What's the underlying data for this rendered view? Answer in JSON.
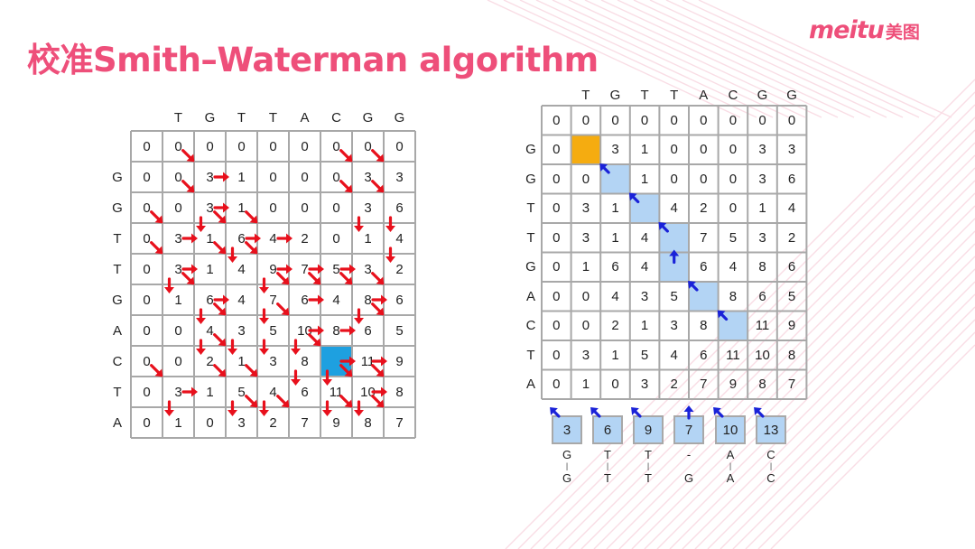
{
  "title": "校准Smith–Waterman algorithm",
  "logo": {
    "brand": "meitu",
    "cn": "美图"
  },
  "left_matrix": {
    "col_headers": [
      "T",
      "G",
      "T",
      "T",
      "A",
      "C",
      "G",
      "G"
    ],
    "row_headers": [
      "",
      "G",
      "G",
      "T",
      "T",
      "G",
      "A",
      "C",
      "T",
      "A"
    ],
    "rows": [
      [
        "0",
        "0",
        "0",
        "0",
        "0",
        "0",
        "0",
        "0",
        "0"
      ],
      [
        "0",
        "0",
        "3",
        "1",
        "0",
        "0",
        "0",
        "3",
        "3"
      ],
      [
        "0",
        "0",
        "3",
        "1",
        "0",
        "0",
        "0",
        "3",
        "6"
      ],
      [
        "0",
        "3",
        "1",
        "6",
        "4",
        "2",
        "0",
        "1",
        "4"
      ],
      [
        "0",
        "3",
        "1",
        "4",
        "9",
        "7",
        "5",
        "3",
        "2"
      ],
      [
        "0",
        "1",
        "6",
        "4",
        "7",
        "6",
        "4",
        "8",
        "6"
      ],
      [
        "0",
        "0",
        "4",
        "3",
        "5",
        "10",
        "8",
        "6",
        "5"
      ],
      [
        "0",
        "0",
        "2",
        "1",
        "3",
        "8",
        "13",
        "11",
        "9"
      ],
      [
        "0",
        "3",
        "1",
        "5",
        "4",
        "6",
        "11",
        "10",
        "8"
      ],
      [
        "0",
        "1",
        "0",
        "3",
        "2",
        "7",
        "9",
        "8",
        "7"
      ]
    ],
    "highlight": {
      "row": 7,
      "col": 6,
      "color": "#1ea0e0"
    }
  },
  "right_matrix": {
    "col_headers": [
      "T",
      "G",
      "T",
      "T",
      "A",
      "C",
      "G",
      "G"
    ],
    "row_headers": [
      "",
      "G",
      "G",
      "T",
      "T",
      "G",
      "A",
      "C",
      "T",
      "A"
    ],
    "rows": [
      [
        "0",
        "0",
        "0",
        "0",
        "0",
        "0",
        "0",
        "0",
        "0"
      ],
      [
        "0",
        "0",
        "3",
        "1",
        "0",
        "0",
        "0",
        "3",
        "3"
      ],
      [
        "0",
        "0",
        "3",
        "1",
        "0",
        "0",
        "0",
        "3",
        "6"
      ],
      [
        "0",
        "3",
        "1",
        "6",
        "4",
        "2",
        "0",
        "1",
        "4"
      ],
      [
        "0",
        "3",
        "1",
        "4",
        "9",
        "7",
        "5",
        "3",
        "2"
      ],
      [
        "0",
        "1",
        "6",
        "4",
        "7",
        "6",
        "4",
        "8",
        "6"
      ],
      [
        "0",
        "0",
        "4",
        "3",
        "5",
        "10",
        "8",
        "6",
        "5"
      ],
      [
        "0",
        "0",
        "2",
        "1",
        "3",
        "8",
        "13",
        "11",
        "9"
      ],
      [
        "0",
        "3",
        "1",
        "5",
        "4",
        "6",
        "11",
        "10",
        "8"
      ],
      [
        "0",
        "1",
        "0",
        "3",
        "2",
        "7",
        "9",
        "8",
        "7"
      ]
    ],
    "start_cell": {
      "row": 1,
      "col": 1,
      "color": "#f5ac10"
    },
    "path_cells": [
      [
        2,
        2
      ],
      [
        3,
        3
      ],
      [
        4,
        4
      ],
      [
        5,
        4
      ],
      [
        6,
        5
      ],
      [
        7,
        6
      ]
    ],
    "path_color": "#b3d4f4"
  },
  "result": {
    "boxes": [
      "3",
      "6",
      "9",
      "7",
      "10",
      "13"
    ],
    "alignment": [
      {
        "top": "G",
        "bottom": "G"
      },
      {
        "top": "T",
        "bottom": "T"
      },
      {
        "top": "T",
        "bottom": "T"
      },
      {
        "top": "-",
        "bottom": "G"
      },
      {
        "top": "A",
        "bottom": "A"
      },
      {
        "top": "C",
        "bottom": "C"
      }
    ]
  },
  "colors": {
    "title": "#ee4f7a",
    "arrow_red": "#e8101c",
    "arrow_blue": "#1a22d8",
    "grid": "#a8a8a8"
  }
}
